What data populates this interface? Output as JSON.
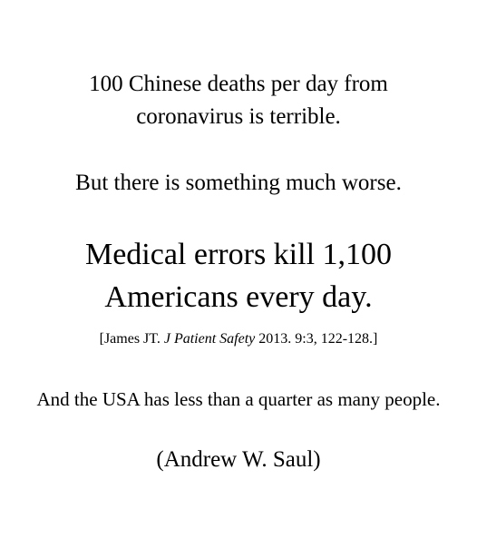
{
  "lines": {
    "intro_1": "100 Chinese deaths per day from",
    "intro_2": "coronavirus is terrible.",
    "contrast": "But there is something much worse.",
    "headline_1": "Medical errors kill 1,100",
    "headline_2": "Americans every day."
  },
  "citation": {
    "open": "[James JT. ",
    "journal": "J Patient Safety",
    "rest": " 2013. 9:3, 122-128.]"
  },
  "population_note": "And the USA has less than a quarter as many people.",
  "attribution": "(Andrew W. Saul)"
}
